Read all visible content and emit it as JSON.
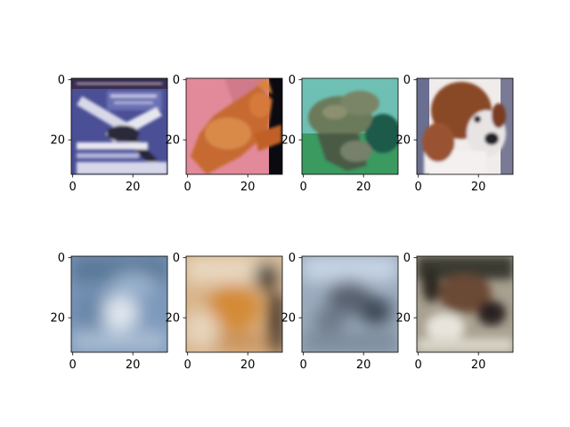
{
  "chart_data": [
    {
      "type": "image",
      "row": "top",
      "col": 1,
      "content": "airplane",
      "xticks": [
        "0",
        "20"
      ],
      "yticks": [
        "0",
        "20"
      ],
      "xlim": [
        -0.5,
        31.5
      ],
      "ylim": [
        31.5,
        -0.5
      ]
    },
    {
      "type": "image",
      "row": "top",
      "col": 2,
      "content": "cat",
      "xticks": [
        "0",
        "20"
      ],
      "yticks": [
        "0",
        "20"
      ],
      "xlim": [
        -0.5,
        31.5
      ],
      "ylim": [
        31.5,
        -0.5
      ]
    },
    {
      "type": "image",
      "row": "top",
      "col": 3,
      "content": "frog",
      "xticks": [
        "0",
        "20"
      ],
      "yticks": [
        "0",
        "20"
      ],
      "xlim": [
        -0.5,
        31.5
      ],
      "ylim": [
        31.5,
        -0.5
      ]
    },
    {
      "type": "image",
      "row": "top",
      "col": 4,
      "content": "dog",
      "xticks": [
        "0",
        "20"
      ],
      "yticks": [
        "0",
        "20"
      ],
      "xlim": [
        -0.5,
        31.5
      ],
      "ylim": [
        31.5,
        -0.5
      ]
    },
    {
      "type": "image",
      "row": "bottom",
      "col": 1,
      "content": "blurry reconstruction (blue/white)",
      "xticks": [
        "0",
        "20"
      ],
      "yticks": [
        "0",
        "20"
      ],
      "xlim": [
        -0.5,
        31.5
      ],
      "ylim": [
        31.5,
        -0.5
      ]
    },
    {
      "type": "image",
      "row": "bottom",
      "col": 2,
      "content": "blurry reconstruction (orange/tan)",
      "xticks": [
        "0",
        "20"
      ],
      "yticks": [
        "0",
        "20"
      ],
      "xlim": [
        -0.5,
        31.5
      ],
      "ylim": [
        31.5,
        -0.5
      ]
    },
    {
      "type": "image",
      "row": "bottom",
      "col": 3,
      "content": "blurry reconstruction (blue/gray)",
      "xticks": [
        "0",
        "20"
      ],
      "yticks": [
        "0",
        "20"
      ],
      "xlim": [
        -0.5,
        31.5
      ],
      "ylim": [
        31.5,
        -0.5
      ]
    },
    {
      "type": "image",
      "row": "bottom",
      "col": 4,
      "content": "blurry reconstruction (brown/white)",
      "xticks": [
        "0",
        "20"
      ],
      "yticks": [
        "0",
        "20"
      ],
      "xlim": [
        -0.5,
        31.5
      ],
      "ylim": [
        31.5,
        -0.5
      ]
    }
  ],
  "colors": {
    "axis": "#000000",
    "background": "#ffffff"
  }
}
